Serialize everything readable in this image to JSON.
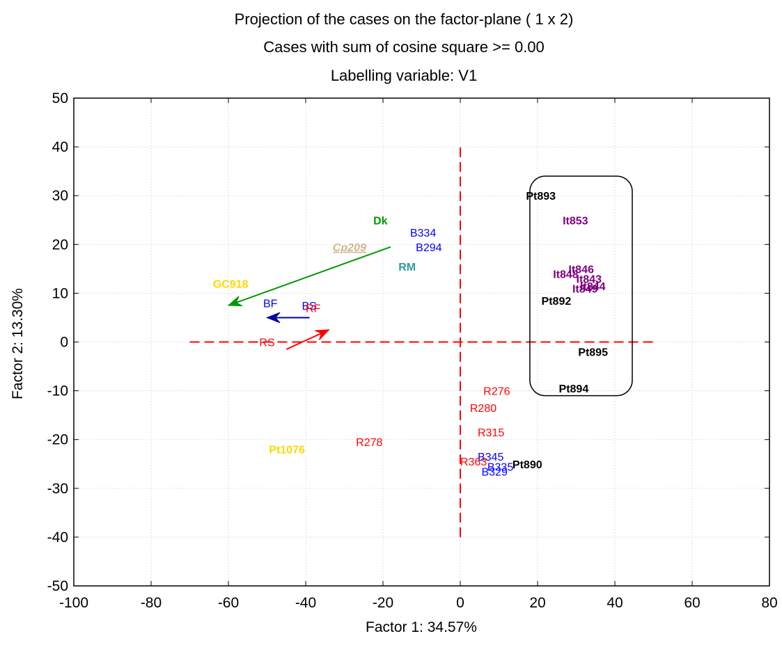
{
  "chart_data": {
    "type": "scatter",
    "title_lines": [
      "Projection of the cases on the factor-plane ( 1 x   2)",
      "Cases with sum of cosine square >=  0.00",
      "Labelling variable: V1"
    ],
    "xlabel": "Factor 1: 34.57%",
    "ylabel": "Factor 2: 13.30%",
    "xlim": [
      -100,
      80
    ],
    "ylim": [
      -50,
      50
    ],
    "xticks": [
      -100,
      -80,
      -60,
      -40,
      -20,
      0,
      20,
      40,
      60,
      80
    ],
    "yticks": [
      -50,
      -40,
      -30,
      -20,
      -10,
      0,
      10,
      20,
      30,
      40,
      50
    ],
    "grid": true,
    "points": [
      {
        "label": "Pt893",
        "x": 17,
        "y": 30,
        "color": "#000000",
        "bold": true
      },
      {
        "label": "It853",
        "x": 26.5,
        "y": 25,
        "color": "#800080",
        "bold": true
      },
      {
        "label": "It846",
        "x": 28,
        "y": 15,
        "color": "#800080",
        "bold": true
      },
      {
        "label": "It848",
        "x": 24,
        "y": 14,
        "color": "#800080",
        "bold": true
      },
      {
        "label": "It843",
        "x": 30,
        "y": 13,
        "color": "#800080",
        "bold": true
      },
      {
        "label": "It844",
        "x": 31,
        "y": 11.5,
        "color": "#800080",
        "bold": true
      },
      {
        "label": "It849",
        "x": 29,
        "y": 11,
        "color": "#800080",
        "bold": true
      },
      {
        "label": "Pt892",
        "x": 21,
        "y": 8.5,
        "color": "#000000",
        "bold": true
      },
      {
        "label": "Pt895",
        "x": 30.5,
        "y": -2,
        "color": "#000000",
        "bold": true
      },
      {
        "label": "Pt894",
        "x": 25.5,
        "y": -9.5,
        "color": "#000000",
        "bold": true
      },
      {
        "label": "Dk",
        "x": -22.5,
        "y": 25,
        "color": "#009900",
        "bold": true
      },
      {
        "label": "B334",
        "x": -13,
        "y": 22.5,
        "color": "#0000ff",
        "bold": false
      },
      {
        "label": "B294",
        "x": -11.5,
        "y": 19.5,
        "color": "#0000ff",
        "bold": false
      },
      {
        "label": "Cp209",
        "x": -33,
        "y": 19.5,
        "color": "#d2b48c",
        "bold": true,
        "italic": true,
        "underline": true
      },
      {
        "label": "RM",
        "x": -16,
        "y": 15.5,
        "color": "#339999",
        "bold": true
      },
      {
        "label": "GC918",
        "x": -64,
        "y": 12,
        "color": "#ffd700",
        "bold": true
      },
      {
        "label": "BF",
        "x": -51,
        "y": 8,
        "color": "#0000ff",
        "bold": false
      },
      {
        "label": "BS",
        "x": -41,
        "y": 7.5,
        "color": "#0000ff",
        "bold": false
      },
      {
        "label": "RF",
        "x": -40,
        "y": 7,
        "color": "#ff0000",
        "bold": false
      },
      {
        "label": "RS",
        "x": -52,
        "y": 0,
        "color": "#ff0000",
        "bold": false
      },
      {
        "label": "R276",
        "x": 6,
        "y": -10,
        "color": "#ff0000",
        "bold": false
      },
      {
        "label": "R280",
        "x": 2.5,
        "y": -13.5,
        "color": "#ff0000",
        "bold": false
      },
      {
        "label": "R315",
        "x": 4.5,
        "y": -18.5,
        "color": "#ff0000",
        "bold": false
      },
      {
        "label": "R278",
        "x": -27,
        "y": -20.5,
        "color": "#ff0000",
        "bold": false
      },
      {
        "label": "Pt1076",
        "x": -49.5,
        "y": -22,
        "color": "#ffd700",
        "bold": true
      },
      {
        "label": "B345",
        "x": 4.5,
        "y": -23.5,
        "color": "#0000ff",
        "bold": false
      },
      {
        "label": "R363",
        "x": 0,
        "y": -24.5,
        "color": "#ff0000",
        "bold": false
      },
      {
        "label": "Pt890",
        "x": 13.5,
        "y": -25,
        "color": "#000000",
        "bold": true
      },
      {
        "label": "B335",
        "x": 7,
        "y": -25.5,
        "color": "#0000ff",
        "bold": false
      },
      {
        "label": "B329",
        "x": 5.5,
        "y": -26.5,
        "color": "#0000ff",
        "bold": false
      }
    ],
    "arrows": [
      {
        "from": [
          -18,
          19.5
        ],
        "to": [
          -60,
          7.5
        ],
        "color": "#009900"
      },
      {
        "from": [
          -39,
          5
        ],
        "to": [
          -50,
          5
        ],
        "color": "#000099"
      },
      {
        "from": [
          -45,
          -1.5
        ],
        "to": [
          -34,
          2.5
        ],
        "color": "#ff0000"
      }
    ],
    "dashed_axes": {
      "horizontal": {
        "from": [
          -70,
          0
        ],
        "to": [
          50,
          0
        ]
      },
      "vertical": {
        "from": [
          0,
          -40
        ],
        "to": [
          0,
          40
        ]
      },
      "color": "#ff0000"
    },
    "highlight_box": {
      "x0": 18,
      "x1": 44.5,
      "y0": -11,
      "y1": 34
    }
  }
}
